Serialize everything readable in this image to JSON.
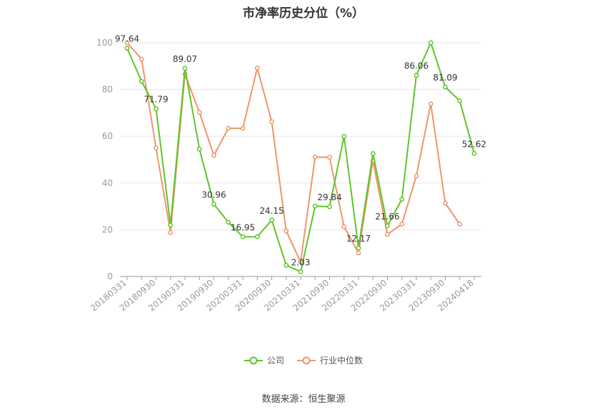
{
  "chart_data": {
    "type": "line",
    "title": "市净率历史分位（%）",
    "xlabel": "",
    "ylabel": "",
    "ylim": [
      0,
      100
    ],
    "yticks": [
      0,
      20,
      40,
      60,
      80,
      100
    ],
    "grid": true,
    "legend": "bottom-center",
    "x": [
      "20180331",
      "20180630",
      "20180930",
      "20181231",
      "20190331",
      "20190630",
      "20190930",
      "20191231",
      "20200331",
      "20200630",
      "20200930",
      "20201231",
      "20210331",
      "20210630",
      "20210930",
      "20211231",
      "20220331",
      "20220630",
      "20220930",
      "20221231",
      "20230331",
      "20230630",
      "20230930",
      "20231231",
      "20240418"
    ],
    "xtick_labels": [
      "20180331",
      "20180930",
      "20190331",
      "20190930",
      "20200331",
      "20200930",
      "20210331",
      "20210930",
      "20220331",
      "20220930",
      "20230331",
      "20230930",
      "20240418"
    ],
    "series": [
      {
        "name": "公司",
        "color": "#5ec52a",
        "values": [
          97.64,
          83.5,
          71.79,
          22,
          89.07,
          54.5,
          30.96,
          23.2,
          16.95,
          17,
          24.15,
          4.8,
          2.03,
          30.1,
          29.84,
          60,
          12.17,
          52.6,
          21.66,
          33,
          86.06,
          100,
          81.09,
          75.2,
          52.62
        ],
        "labels": {
          "0": "97.64",
          "2": "71.79",
          "4": "89.07",
          "6": "30.96",
          "8": "16.95",
          "10": "24.15",
          "12": "2.03",
          "14": "29.84",
          "16": "12.17",
          "18": "21.66",
          "20": "86.06",
          "22": "81.09",
          "24": "52.62"
        }
      },
      {
        "name": "行业中位数",
        "color": "#f0956a",
        "values": [
          100,
          93,
          55,
          18.8,
          86.5,
          70.2,
          51.8,
          63.4,
          63.4,
          89.2,
          66.2,
          19.5,
          6.2,
          51.1,
          51,
          21.3,
          10.1,
          49.5,
          18,
          22.4,
          43,
          73.9,
          31.4,
          22.4,
          null
        ]
      }
    ]
  },
  "footer": {
    "source": "数据来源：恒生聚源"
  }
}
